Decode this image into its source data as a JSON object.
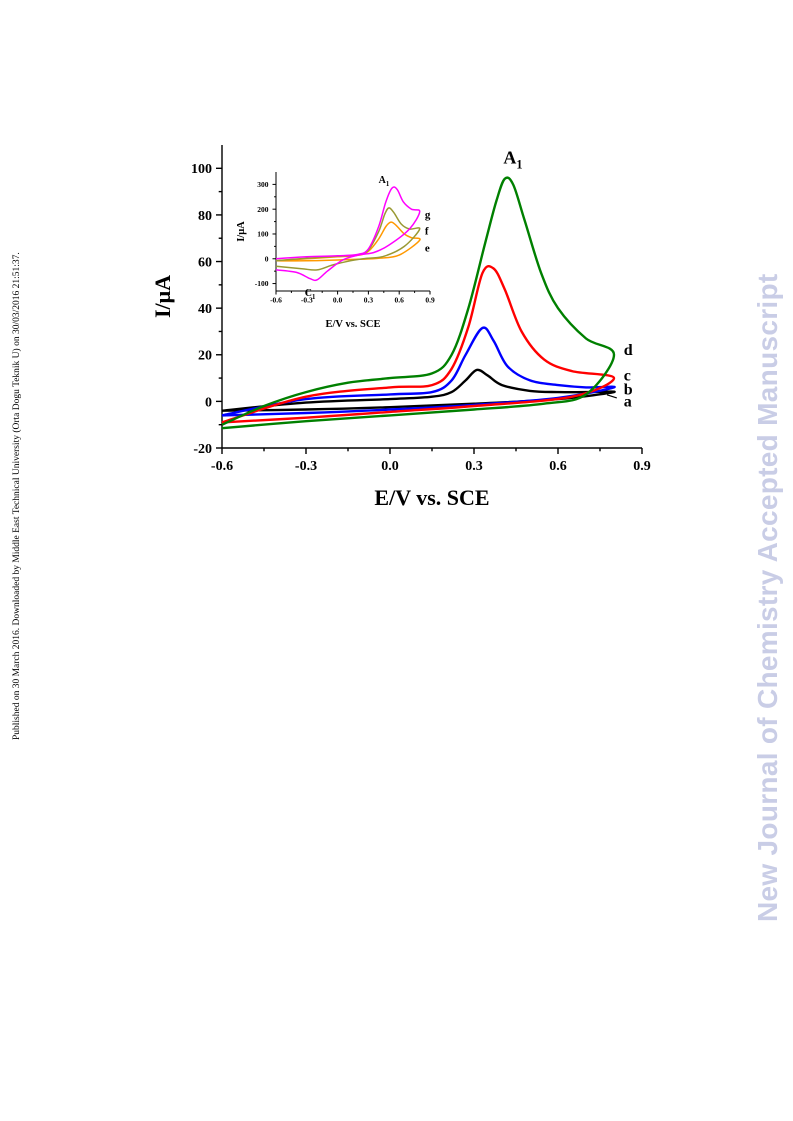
{
  "side_note": "Published on 30 March 2016. Downloaded by Middle East Technical University (Orta Dogu Teknik U) on 30/03/2016 21:51:37.",
  "watermark": "New Journal of Chemistry Accepted Manuscript",
  "chart_data": [
    {
      "type": "line",
      "xlabel": "E/V vs. SCE",
      "ylabel": "I/μA",
      "xlim": [
        -0.6,
        0.9
      ],
      "ylim": [
        -20,
        110
      ],
      "xticks": [
        "-0.6",
        "-0.3",
        "0.0",
        "0.3",
        "0.6",
        "0.9"
      ],
      "yticks": [
        "-20",
        "0",
        "20",
        "40",
        "60",
        "80",
        "100"
      ],
      "peak_label": "A",
      "peak_label_sub": "1",
      "series": [
        {
          "name": "a",
          "color": "#000000",
          "forward": [
            [
              -0.6,
              -4
            ],
            [
              -0.3,
              -0.5
            ],
            [
              0.0,
              1
            ],
            [
              0.15,
              2
            ],
            [
              0.22,
              4
            ],
            [
              0.27,
              9
            ],
            [
              0.31,
              13.5
            ],
            [
              0.35,
              11
            ],
            [
              0.4,
              7
            ],
            [
              0.5,
              4.5
            ],
            [
              0.6,
              4
            ],
            [
              0.7,
              4
            ],
            [
              0.8,
              4
            ]
          ],
          "reverse": [
            [
              0.8,
              4
            ],
            [
              0.6,
              1
            ],
            [
              0.3,
              -1
            ],
            [
              0.0,
              -2.5
            ],
            [
              -0.3,
              -3.5
            ],
            [
              -0.6,
              -4
            ]
          ]
        },
        {
          "name": "b",
          "color": "#0000ff",
          "forward": [
            [
              -0.6,
              -6
            ],
            [
              -0.3,
              1
            ],
            [
              0.0,
              3
            ],
            [
              0.15,
              4
            ],
            [
              0.22,
              9
            ],
            [
              0.27,
              20
            ],
            [
              0.33,
              31.5
            ],
            [
              0.37,
              26
            ],
            [
              0.42,
              15
            ],
            [
              0.5,
              9
            ],
            [
              0.6,
              7
            ],
            [
              0.7,
              6
            ],
            [
              0.8,
              6
            ]
          ],
          "reverse": [
            [
              0.8,
              6
            ],
            [
              0.6,
              1.5
            ],
            [
              0.3,
              -1.5
            ],
            [
              0.0,
              -3.5
            ],
            [
              -0.3,
              -5
            ],
            [
              -0.6,
              -6
            ]
          ]
        },
        {
          "name": "c",
          "color": "#ff0000",
          "forward": [
            [
              -0.6,
              -9
            ],
            [
              -0.3,
              2
            ],
            [
              0.0,
              6
            ],
            [
              0.15,
              7
            ],
            [
              0.22,
              14
            ],
            [
              0.28,
              32
            ],
            [
              0.33,
              55
            ],
            [
              0.37,
              57
            ],
            [
              0.41,
              48
            ],
            [
              0.47,
              30
            ],
            [
              0.55,
              18
            ],
            [
              0.65,
              13
            ],
            [
              0.8,
              10
            ]
          ],
          "reverse": [
            [
              0.8,
              10
            ],
            [
              0.65,
              2
            ],
            [
              0.3,
              -2
            ],
            [
              0.0,
              -4.5
            ],
            [
              -0.3,
              -7
            ],
            [
              -0.6,
              -9
            ]
          ]
        },
        {
          "name": "d",
          "color": "#008000",
          "forward": [
            [
              -0.6,
              -10
            ],
            [
              -0.45,
              -2
            ],
            [
              -0.3,
              4
            ],
            [
              -0.15,
              8
            ],
            [
              0.0,
              10
            ],
            [
              0.15,
              12
            ],
            [
              0.22,
              20
            ],
            [
              0.28,
              40
            ],
            [
              0.34,
              68
            ],
            [
              0.38,
              86
            ],
            [
              0.41,
              95.5
            ],
            [
              0.44,
              93
            ],
            [
              0.48,
              78
            ],
            [
              0.54,
              55
            ],
            [
              0.6,
              40
            ],
            [
              0.7,
              27
            ],
            [
              0.8,
              20
            ]
          ],
          "reverse": [
            [
              0.8,
              20
            ],
            [
              0.7,
              3
            ],
            [
              0.55,
              -1
            ],
            [
              0.3,
              -3.5
            ],
            [
              0.0,
              -6
            ],
            [
              -0.3,
              -8.5
            ],
            [
              -0.6,
              -11.5
            ]
          ]
        }
      ]
    },
    {
      "type": "line",
      "xlabel": "E/V vs. SCE",
      "ylabel": "I/μA",
      "xlim": [
        -0.6,
        0.9
      ],
      "ylim": [
        -130,
        350
      ],
      "xticks": [
        "-0.6",
        "-0.3",
        "0.0",
        "0.3",
        "0.6",
        "0.9"
      ],
      "yticks": [
        "-100",
        "0",
        "100",
        "200",
        "300"
      ],
      "anodic_label": "A",
      "anodic_label_sub": "1",
      "cathodic_label": "C",
      "cathodic_label_sub": "1",
      "series": [
        {
          "name": "e",
          "color": "#ff9900",
          "forward": [
            [
              -0.6,
              -8
            ],
            [
              -0.3,
              0
            ],
            [
              0.0,
              8
            ],
            [
              0.2,
              14
            ],
            [
              0.3,
              30
            ],
            [
              0.4,
              80
            ],
            [
              0.47,
              130
            ],
            [
              0.52,
              148
            ],
            [
              0.57,
              135
            ],
            [
              0.65,
              100
            ],
            [
              0.72,
              85
            ],
            [
              0.8,
              75
            ]
          ],
          "reverse": [
            [
              0.8,
              75
            ],
            [
              0.6,
              15
            ],
            [
              0.4,
              2
            ],
            [
              0.2,
              -2
            ],
            [
              0.0,
              -5
            ],
            [
              -0.3,
              -8
            ],
            [
              -0.6,
              -8
            ]
          ]
        },
        {
          "name": "f",
          "color": "#999933",
          "forward": [
            [
              -0.6,
              -8
            ],
            [
              -0.3,
              2
            ],
            [
              0.0,
              10
            ],
            [
              0.2,
              16
            ],
            [
              0.3,
              35
            ],
            [
              0.4,
              110
            ],
            [
              0.46,
              180
            ],
            [
              0.5,
              205
            ],
            [
              0.55,
              185
            ],
            [
              0.62,
              140
            ],
            [
              0.7,
              120
            ],
            [
              0.8,
              120
            ]
          ],
          "reverse": [
            [
              0.8,
              120
            ],
            [
              0.65,
              50
            ],
            [
              0.45,
              10
            ],
            [
              0.25,
              0
            ],
            [
              0.1,
              -10
            ],
            [
              -0.05,
              -25
            ],
            [
              -0.2,
              -45
            ],
            [
              -0.35,
              -40
            ],
            [
              -0.6,
              -30
            ]
          ]
        },
        {
          "name": "g",
          "color": "#ff00ff",
          "forward": [
            [
              -0.6,
              0
            ],
            [
              -0.3,
              8
            ],
            [
              0.0,
              12
            ],
            [
              0.2,
              18
            ],
            [
              0.3,
              40
            ],
            [
              0.4,
              130
            ],
            [
              0.47,
              230
            ],
            [
              0.53,
              285
            ],
            [
              0.58,
              280
            ],
            [
              0.64,
              230
            ],
            [
              0.72,
              200
            ],
            [
              0.8,
              190
            ]
          ],
          "reverse": [
            [
              0.8,
              190
            ],
            [
              0.7,
              120
            ],
            [
              0.5,
              55
            ],
            [
              0.35,
              25
            ],
            [
              0.2,
              15
            ],
            [
              0.05,
              -5
            ],
            [
              -0.1,
              -50
            ],
            [
              -0.2,
              -85
            ],
            [
              -0.27,
              -80
            ],
            [
              -0.4,
              -55
            ],
            [
              -0.6,
              -45
            ]
          ]
        }
      ]
    }
  ]
}
